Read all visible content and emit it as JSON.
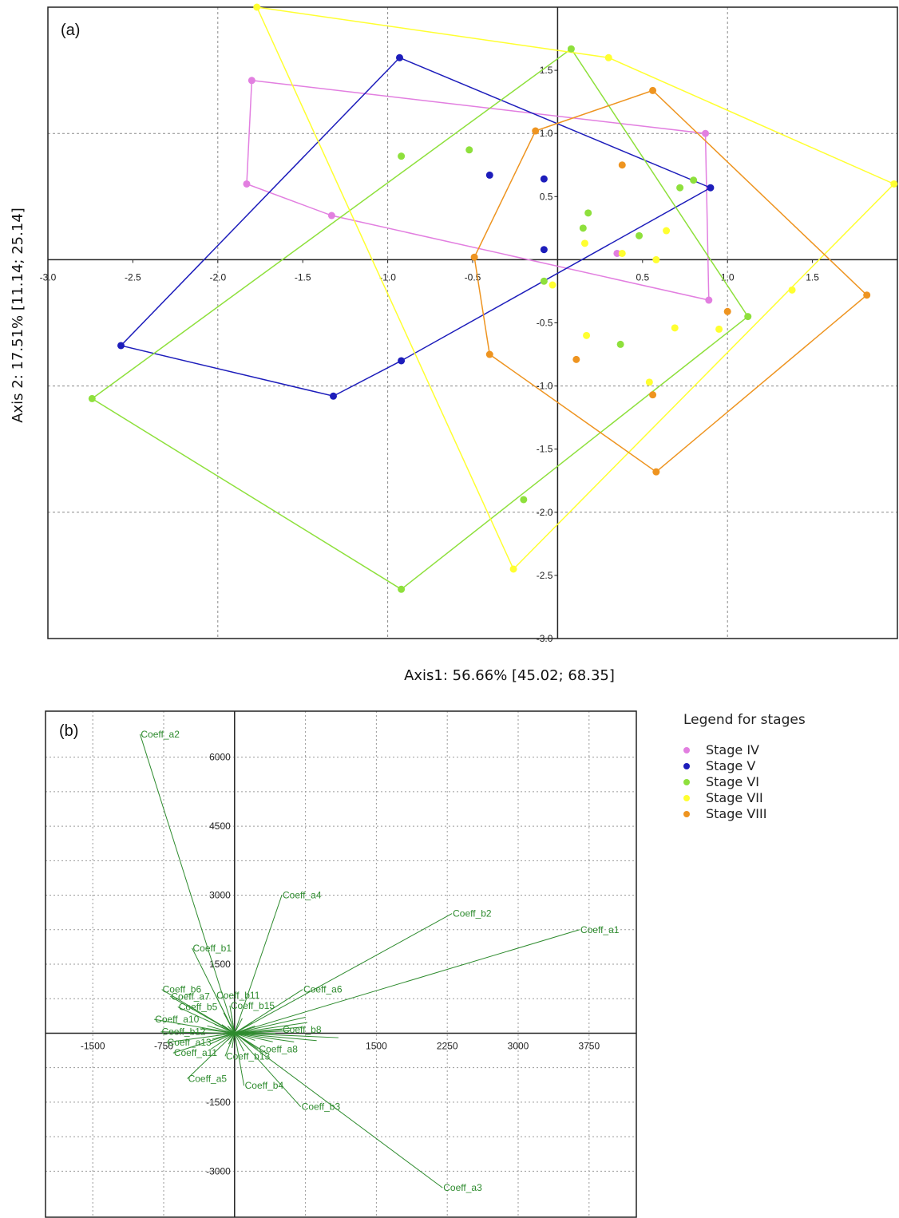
{
  "chart_data": [
    {
      "type": "scatter",
      "panel_label": "(a)",
      "xlabel": "Axis1: 56.66% [45.02; 68.35]",
      "ylabel": "Axis 2: 17.51% [11.14; 25.14]",
      "xlim": [
        -3.0,
        2.0
      ],
      "ylim": [
        -3.0,
        2.0
      ],
      "x_ticks": [
        "-3.0",
        "-2.5",
        "-2.0",
        "-1.5",
        "-1.0",
        "-0.5",
        "0.5",
        "1.0",
        "1.5"
      ],
      "y_ticks": [
        "1.5",
        "1.0",
        "0.5",
        "-0.5",
        "-1.0",
        "-1.5",
        "-2.0",
        "-2.5",
        "-3.0"
      ],
      "grid": true,
      "series": [
        {
          "name": "Stage IV",
          "color": "#e27fe0",
          "points": [
            [
              -1.8,
              1.42
            ],
            [
              0.87,
              1.0
            ],
            [
              -1.83,
              0.6
            ],
            [
              -1.33,
              0.35
            ],
            [
              0.35,
              0.05
            ],
            [
              0.89,
              -0.32
            ]
          ],
          "hull": [
            [
              -1.8,
              1.42
            ],
            [
              0.87,
              1.0
            ],
            [
              0.89,
              -0.32
            ],
            [
              -1.33,
              0.35
            ],
            [
              -1.83,
              0.6
            ]
          ]
        },
        {
          "name": "Stage V",
          "color": "#1d1dbb",
          "points": [
            [
              -0.93,
              1.6
            ],
            [
              0.9,
              0.57
            ],
            [
              -0.4,
              0.67
            ],
            [
              -0.08,
              0.64
            ],
            [
              -0.08,
              0.08
            ],
            [
              -2.57,
              -0.68
            ],
            [
              -0.92,
              -0.8
            ],
            [
              -1.32,
              -1.08
            ]
          ],
          "hull": [
            [
              -0.93,
              1.6
            ],
            [
              0.9,
              0.57
            ],
            [
              -0.92,
              -0.8
            ],
            [
              -1.32,
              -1.08
            ],
            [
              -2.57,
              -0.68
            ]
          ]
        },
        {
          "name": "Stage VI",
          "color": "#8ee03c",
          "points": [
            [
              0.08,
              1.67
            ],
            [
              -0.92,
              0.82
            ],
            [
              -0.52,
              0.87
            ],
            [
              0.8,
              0.63
            ],
            [
              0.72,
              0.57
            ],
            [
              0.18,
              0.37
            ],
            [
              0.15,
              0.25
            ],
            [
              0.48,
              0.19
            ],
            [
              -0.08,
              -0.17
            ],
            [
              0.37,
              -0.67
            ],
            [
              1.12,
              -0.45
            ],
            [
              -2.74,
              -1.1
            ],
            [
              -0.2,
              -1.9
            ],
            [
              -0.92,
              -2.61
            ]
          ],
          "hull": [
            [
              0.08,
              1.67
            ],
            [
              1.12,
              -0.45
            ],
            [
              -0.92,
              -2.61
            ],
            [
              -2.74,
              -1.1
            ]
          ]
        },
        {
          "name": "Stage VII",
          "color": "#ffff30",
          "points": [
            [
              -1.77,
              2.0
            ],
            [
              0.3,
              1.6
            ],
            [
              1.98,
              0.6
            ],
            [
              0.16,
              0.13
            ],
            [
              0.38,
              0.05
            ],
            [
              0.64,
              0.23
            ],
            [
              0.58,
              0.0
            ],
            [
              -0.03,
              -0.2
            ],
            [
              1.38,
              -0.24
            ],
            [
              0.17,
              -0.6
            ],
            [
              0.69,
              -0.54
            ],
            [
              0.95,
              -0.55
            ],
            [
              0.54,
              -0.97
            ],
            [
              -0.26,
              -2.45
            ]
          ],
          "hull": [
            [
              -1.77,
              2.0
            ],
            [
              0.3,
              1.6
            ],
            [
              1.98,
              0.6
            ],
            [
              -0.26,
              -2.45
            ]
          ]
        },
        {
          "name": "Stage VIII",
          "color": "#ee9420",
          "points": [
            [
              0.56,
              1.34
            ],
            [
              -0.13,
              1.02
            ],
            [
              0.38,
              0.75
            ],
            [
              -0.49,
              0.02
            ],
            [
              1.82,
              -0.28
            ],
            [
              1.0,
              -0.41
            ],
            [
              0.11,
              -0.79
            ],
            [
              -0.4,
              -0.75
            ],
            [
              0.56,
              -1.07
            ],
            [
              0.58,
              -1.68
            ]
          ],
          "hull": [
            [
              0.56,
              1.34
            ],
            [
              1.82,
              -0.28
            ],
            [
              0.58,
              -1.68
            ],
            [
              -0.4,
              -0.75
            ],
            [
              -0.49,
              0.02
            ],
            [
              -0.13,
              1.02
            ]
          ]
        }
      ]
    },
    {
      "type": "biplot",
      "panel_label": "(b)",
      "xlim": [
        -2000,
        4250
      ],
      "ylim": [
        -4000,
        7000
      ],
      "x_ticks": [
        "-1500",
        "-750",
        "1500",
        "2250",
        "3000",
        "3750"
      ],
      "y_ticks": [
        "6000",
        "4500",
        "3000",
        "1500",
        "-1500",
        "-3000"
      ],
      "grid": true,
      "color": "#2e8b2e",
      "vectors": [
        {
          "name": "Coeff_a2",
          "x": -1000,
          "y": 6500
        },
        {
          "name": "Coeff_a4",
          "x": 500,
          "y": 3000
        },
        {
          "name": "Coeff_b2",
          "x": 2300,
          "y": 2600
        },
        {
          "name": "Coeff_a1",
          "x": 3650,
          "y": 2250
        },
        {
          "name": "Coeff_b1",
          "x": -450,
          "y": 1850
        },
        {
          "name": "Coeff_a6",
          "x": 720,
          "y": 950
        },
        {
          "name": "Coeff_b6",
          "x": -770,
          "y": 950
        },
        {
          "name": "Coeff_a7",
          "x": -680,
          "y": 800
        },
        {
          "name": "Coeff_b11",
          "x": -200,
          "y": 820
        },
        {
          "name": "Coeff_b15",
          "x": -50,
          "y": 600
        },
        {
          "name": "Coeff_b5",
          "x": -600,
          "y": 570
        },
        {
          "name": "Coeff_a10",
          "x": -850,
          "y": 300
        },
        {
          "name": "Coeff_b12",
          "x": -780,
          "y": 30
        },
        {
          "name": "Coeff_b8",
          "x": 500,
          "y": 80
        },
        {
          "name": "Coeff_a13",
          "x": -720,
          "y": -200
        },
        {
          "name": "Coeff_a11",
          "x": -650,
          "y": -430
        },
        {
          "name": "Coeff_b13",
          "x": -100,
          "y": -500
        },
        {
          "name": "Coeff_a8",
          "x": 250,
          "y": -350
        },
        {
          "name": "Coeff_a5",
          "x": -500,
          "y": -990
        },
        {
          "name": "Coeff_b4",
          "x": 100,
          "y": -1140
        },
        {
          "name": "Coeff_b3",
          "x": 700,
          "y": -1600
        },
        {
          "name": "Coeff_a3",
          "x": 2200,
          "y": -3360
        }
      ]
    }
  ],
  "legend": {
    "title": "Legend for stages",
    "items": [
      {
        "label": "Stage IV",
        "color": "#e27fe0"
      },
      {
        "label": "Stage V",
        "color": "#1d1dbb"
      },
      {
        "label": "Stage VI",
        "color": "#8ee03c"
      },
      {
        "label": "Stage VII",
        "color": "#ffff30"
      },
      {
        "label": "Stage VIII",
        "color": "#ee9420"
      }
    ]
  }
}
